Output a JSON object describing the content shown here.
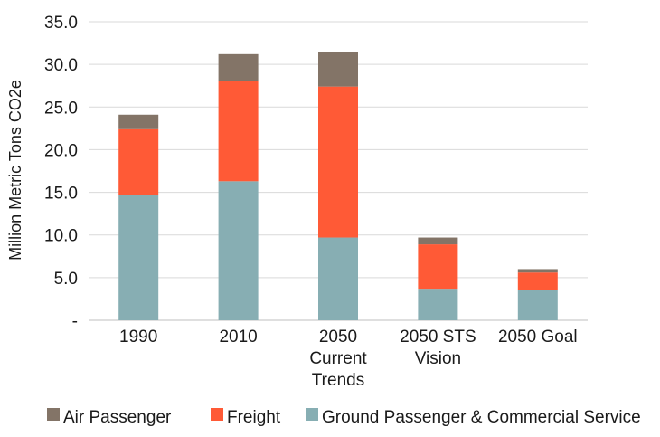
{
  "chart_data": {
    "type": "bar",
    "stacked": true,
    "title": "",
    "xlabel": "",
    "ylabel": "Million Metric Tons CO2e",
    "ylim": [
      0,
      35
    ],
    "y_ticks": [
      0,
      5,
      10,
      15,
      20,
      25,
      30,
      35
    ],
    "y_tick_labels": [
      "-",
      "5.0",
      "10.0",
      "15.0",
      "20.0",
      "25.0",
      "30.0",
      "35.0"
    ],
    "grid": true,
    "legend_position": "bottom",
    "categories": [
      [
        "1990"
      ],
      [
        "2010"
      ],
      [
        "2050",
        "Current",
        "Trends"
      ],
      [
        "2050 STS",
        "Vision"
      ],
      [
        "2050 Goal"
      ]
    ],
    "series": [
      {
        "name": "Ground Passenger & Commercial Service",
        "color": "#87aeb3",
        "values": [
          14.7,
          16.3,
          9.7,
          3.7,
          3.6
        ]
      },
      {
        "name": "Freight",
        "color": "#ff5a36",
        "values": [
          7.7,
          11.7,
          17.7,
          5.2,
          2.0
        ]
      },
      {
        "name": "Air Passenger",
        "color": "#837467",
        "values": [
          1.7,
          3.2,
          4.0,
          0.8,
          0.4
        ]
      }
    ],
    "legend_order": [
      "Air Passenger",
      "Freight",
      "Ground Passenger & Commercial Service"
    ]
  }
}
